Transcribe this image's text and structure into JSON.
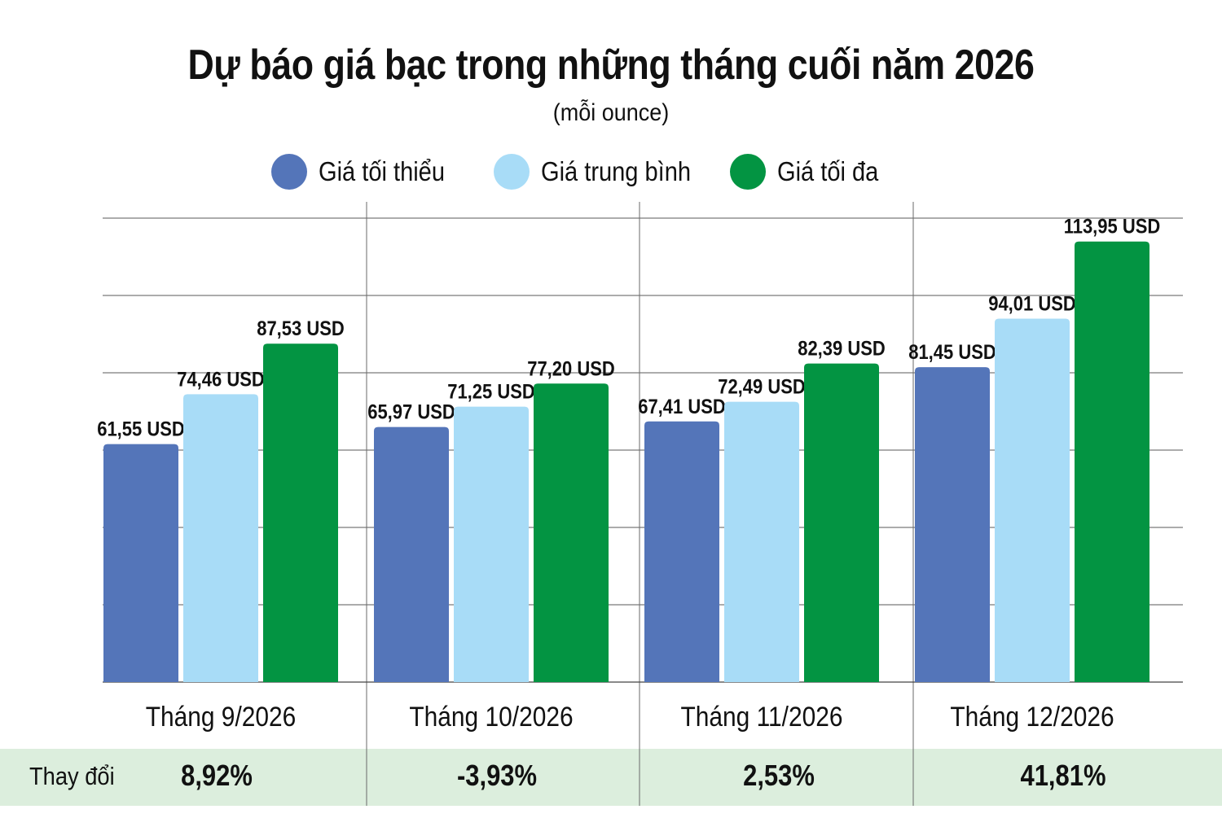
{
  "chart_data": {
    "type": "bar",
    "title": "Dự báo giá bạc trong những tháng cuối năm 2026",
    "subtitle": "(mỗi ounce)",
    "categories": [
      "Tháng 9/2026",
      "Tháng 10/2026",
      "Tháng 11/2026",
      "Tháng 12/2026"
    ],
    "series": [
      {
        "name": "Giá tối thiểu",
        "color": "#5475b9",
        "values": [
          61.55,
          65.97,
          67.41,
          81.45
        ],
        "labels": [
          "61,55 USD",
          "65,97 USD",
          "67,41 USD",
          "81,45 USD"
        ]
      },
      {
        "name": "Giá trung bình",
        "color": "#a8dcf7",
        "values": [
          74.46,
          71.25,
          72.49,
          94.01
        ],
        "labels": [
          "74,46 USD",
          "71,25 USD",
          "72,49 USD",
          "94,01 USD"
        ]
      },
      {
        "name": "Giá tối đa",
        "color": "#039442",
        "values": [
          87.53,
          77.2,
          82.39,
          113.95
        ],
        "labels": [
          "87,53 USD",
          "77,20 USD",
          "82,39 USD",
          "113,95 USD"
        ]
      }
    ],
    "ylim": [
      0,
      120
    ],
    "grid": true,
    "legend_position": "top",
    "change": {
      "label": "Thay đổi",
      "values": [
        "8,92%",
        "-3,93%",
        "2,53%",
        "41,81%"
      ]
    }
  }
}
